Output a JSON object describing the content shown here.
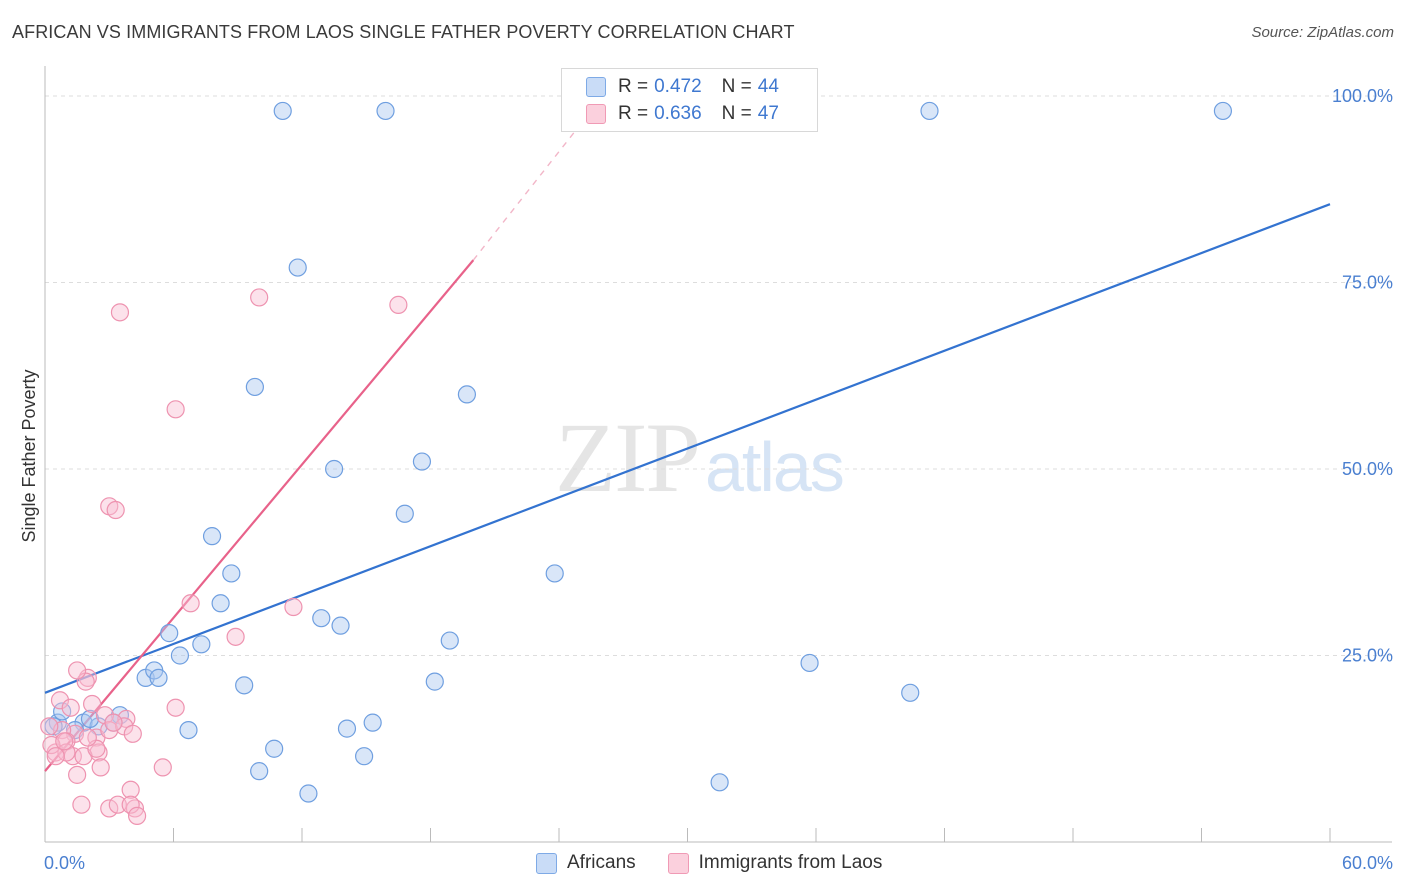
{
  "header": {
    "title": "AFRICAN VS IMMIGRANTS FROM LAOS SINGLE FATHER POVERTY CORRELATION CHART",
    "source": "Source: ZipAtlas.com"
  },
  "watermark": {
    "zip": "ZIP",
    "atlas": "atlas"
  },
  "legend": {
    "rows": [
      {
        "r_label": "R =",
        "r_value": "0.472",
        "n_label": "N =",
        "n_value": "44"
      },
      {
        "r_label": "R =",
        "r_value": "0.636",
        "n_label": "N =",
        "n_value": "47"
      }
    ],
    "bottom": [
      "Africans",
      "Immigrants from Laos"
    ]
  },
  "chart_data": {
    "type": "scatter",
    "title": "AFRICAN VS IMMIGRANTS FROM LAOS SINGLE FATHER POVERTY CORRELATION CHART",
    "xlabel": "",
    "ylabel": "Single Father Poverty",
    "xlim": [
      0,
      60
    ],
    "ylim": [
      0,
      100
    ],
    "x_tick_labels": [
      "0.0%",
      "60.0%"
    ],
    "y_ticks": [
      25,
      50,
      75,
      100
    ],
    "y_tick_labels": [
      "25.0%",
      "50.0%",
      "75.0%",
      "100.0%"
    ],
    "colors": {
      "Africans": "#3373d0",
      "Immigrants from Laos": "#e8628a"
    },
    "series": [
      {
        "name": "Africans",
        "R": 0.472,
        "N": 44,
        "trend": {
          "x0": 0,
          "y0": 20.0,
          "x1": 60,
          "y1": 85.5
        },
        "points": [
          [
            11.1,
            98
          ],
          [
            15.9,
            98
          ],
          [
            41.3,
            98
          ],
          [
            55.0,
            98
          ],
          [
            11.8,
            77
          ],
          [
            9.8,
            61
          ],
          [
            19.7,
            60
          ],
          [
            13.5,
            50
          ],
          [
            17.6,
            51
          ],
          [
            16.8,
            44
          ],
          [
            7.8,
            41
          ],
          [
            8.7,
            36
          ],
          [
            23.8,
            36
          ],
          [
            8.2,
            32
          ],
          [
            5.8,
            28
          ],
          [
            12.9,
            30
          ],
          [
            13.8,
            29
          ],
          [
            18.9,
            27
          ],
          [
            7.3,
            26.5
          ],
          [
            6.3,
            25
          ],
          [
            35.7,
            24
          ],
          [
            4.7,
            22
          ],
          [
            5.1,
            23
          ],
          [
            5.3,
            22
          ],
          [
            9.3,
            21
          ],
          [
            18.2,
            21.5
          ],
          [
            40.4,
            20
          ],
          [
            3.5,
            17
          ],
          [
            3.2,
            16
          ],
          [
            0.6,
            16
          ],
          [
            1.8,
            16
          ],
          [
            0.8,
            17.5
          ],
          [
            2.5,
            15.5
          ],
          [
            6.7,
            15
          ],
          [
            14.1,
            15.2
          ],
          [
            15.3,
            16
          ],
          [
            10.7,
            12.5
          ],
          [
            14.9,
            11.5
          ],
          [
            10.0,
            9.5
          ],
          [
            12.3,
            6.5
          ],
          [
            31.5,
            8
          ],
          [
            0.4,
            15.5
          ],
          [
            1.4,
            15
          ],
          [
            2.1,
            16.5
          ]
        ]
      },
      {
        "name": "Immigrants from Laos",
        "R": 0.636,
        "N": 47,
        "trend": {
          "x0": 0,
          "y0": 9.5,
          "x1": 20,
          "y1": 78
        },
        "trend_dashed": {
          "x0": 20,
          "y0": 78,
          "x1": 25.5,
          "y1": 98
        },
        "points": [
          [
            10.0,
            73
          ],
          [
            16.5,
            72
          ],
          [
            3.5,
            71
          ],
          [
            6.1,
            58
          ],
          [
            3.0,
            45
          ],
          [
            3.3,
            44.5
          ],
          [
            6.8,
            32
          ],
          [
            11.6,
            31.5
          ],
          [
            8.9,
            27.5
          ],
          [
            2.0,
            22
          ],
          [
            1.9,
            21.5
          ],
          [
            1.5,
            23
          ],
          [
            0.7,
            19
          ],
          [
            1.2,
            18
          ],
          [
            2.2,
            18.5
          ],
          [
            2.8,
            17
          ],
          [
            3.8,
            16.5
          ],
          [
            1.4,
            14.5
          ],
          [
            0.8,
            15
          ],
          [
            1.0,
            13.5
          ],
          [
            0.2,
            15.5
          ],
          [
            0.5,
            12
          ],
          [
            1.3,
            11.5
          ],
          [
            2.4,
            14
          ],
          [
            3.0,
            15
          ],
          [
            3.7,
            15.5
          ],
          [
            2.5,
            12
          ],
          [
            4.1,
            14.5
          ],
          [
            1.0,
            12
          ],
          [
            0.3,
            13
          ],
          [
            6.1,
            18
          ],
          [
            5.5,
            10
          ],
          [
            1.8,
            11.5
          ],
          [
            2.6,
            10
          ],
          [
            4.0,
            7
          ],
          [
            4.2,
            4.5
          ],
          [
            3.0,
            4.5
          ],
          [
            3.4,
            5
          ],
          [
            4.0,
            5
          ],
          [
            4.3,
            3.5
          ],
          [
            1.5,
            9
          ],
          [
            2.4,
            12.5
          ],
          [
            0.9,
            13.5
          ],
          [
            1.7,
            5
          ],
          [
            0.5,
            11.5
          ],
          [
            2.0,
            14
          ],
          [
            3.2,
            16
          ]
        ]
      }
    ]
  }
}
